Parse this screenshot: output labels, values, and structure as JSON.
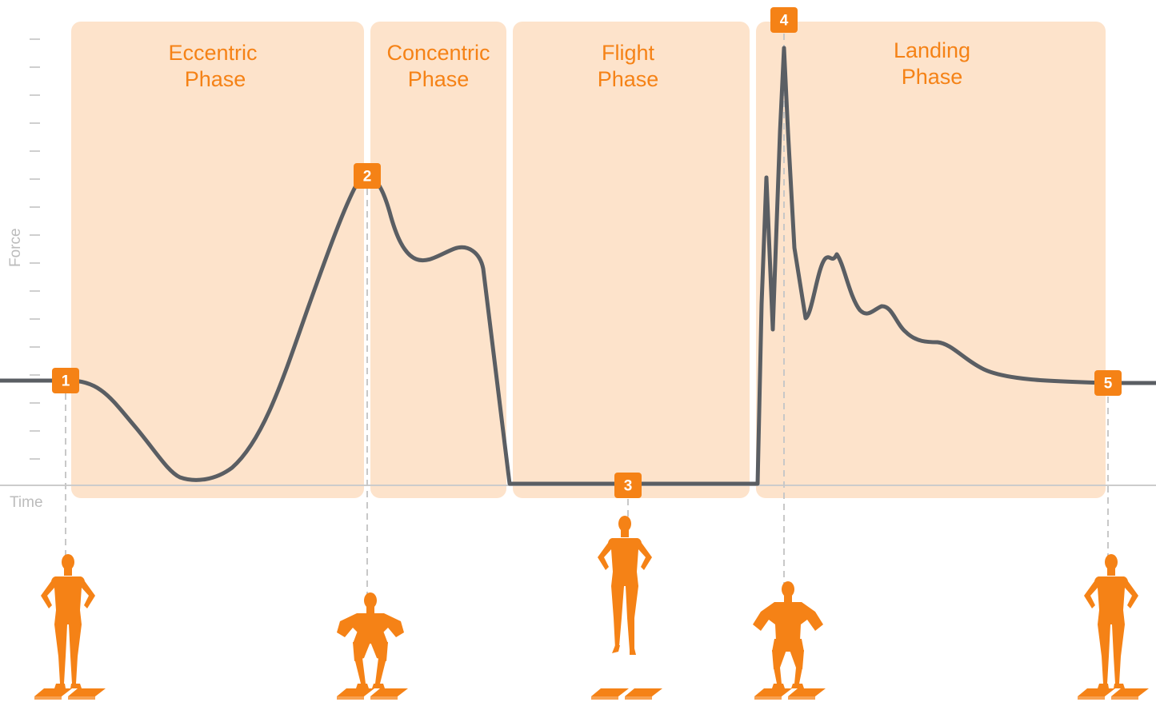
{
  "axes": {
    "y_label": "Force",
    "x_label": "Time"
  },
  "phases": [
    {
      "id": "eccentric",
      "line1": "Eccentric",
      "line2": "Phase"
    },
    {
      "id": "concentric",
      "line1": "Concentric",
      "line2": "Phase"
    },
    {
      "id": "flight",
      "line1": "Flight",
      "line2": "Phase"
    },
    {
      "id": "landing",
      "line1": "Landing",
      "line2": "Phase"
    }
  ],
  "markers": [
    {
      "id": "1",
      "label": "1"
    },
    {
      "id": "2",
      "label": "2"
    },
    {
      "id": "3",
      "label": "3"
    },
    {
      "id": "4",
      "label": "4"
    },
    {
      "id": "5",
      "label": "5"
    }
  ],
  "colors": {
    "phase_fill": "#fde3cb",
    "accent": "#f58216",
    "curve": "#5a5e63",
    "axis": "#cccccc",
    "tick": "#cfcfcf",
    "dash": "#c8c8c8"
  },
  "figures": [
    {
      "marker": "1",
      "pose": "standing",
      "icon": "athlete-standing-icon"
    },
    {
      "marker": "2",
      "pose": "squat",
      "icon": "athlete-squat-icon"
    },
    {
      "marker": "3",
      "pose": "airborne",
      "icon": "athlete-airborne-icon"
    },
    {
      "marker": "4",
      "pose": "landing-bent-knees",
      "icon": "athlete-landing-icon"
    },
    {
      "marker": "5",
      "pose": "standing",
      "icon": "athlete-standing-icon"
    }
  ]
}
